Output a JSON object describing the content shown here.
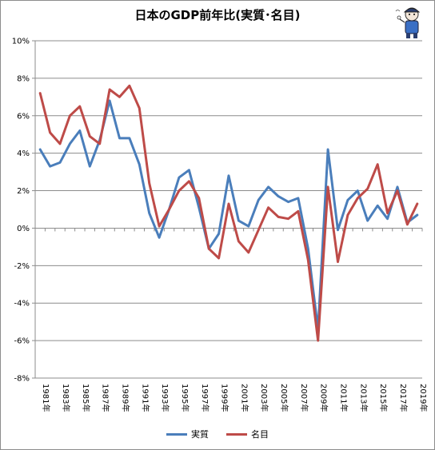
{
  "chart_data": {
    "type": "line",
    "title": "日本のGDP前年比(実質･名目)",
    "x": [
      "1981年",
      "1982年",
      "1983年",
      "1984年",
      "1985年",
      "1986年",
      "1987年",
      "1988年",
      "1989年",
      "1990年",
      "1991年",
      "1992年",
      "1993年",
      "1994年",
      "1995年",
      "1996年",
      "1997年",
      "1998年",
      "1999年",
      "2000年",
      "2001年",
      "2002年",
      "2003年",
      "2004年",
      "2005年",
      "2006年",
      "2007年",
      "2008年",
      "2009年",
      "2010年",
      "2011年",
      "2012年",
      "2013年",
      "2014年",
      "2015年",
      "2016年",
      "2017年",
      "2018年",
      "2019年"
    ],
    "xtick_labels": [
      "1981年",
      "1983年",
      "1985年",
      "1987年",
      "1989年",
      "1991年",
      "1993年",
      "1995年",
      "1997年",
      "1999年",
      "2001年",
      "2003年",
      "2005年",
      "2007年",
      "2009年",
      "2011年",
      "2013年",
      "2015年",
      "2017年",
      "2019年"
    ],
    "yticks": [
      "10%",
      "8%",
      "6%",
      "4%",
      "2%",
      "0%",
      "-2%",
      "-4%",
      "-6%",
      "-8%"
    ],
    "ylim": [
      -8,
      10
    ],
    "grid": "horizontal",
    "legend_position": "bottom",
    "series": [
      {
        "name": "実質",
        "color": "#4a7ebb",
        "values": [
          4.2,
          3.3,
          3.5,
          4.5,
          5.2,
          3.3,
          4.7,
          6.8,
          4.8,
          4.8,
          3.4,
          0.8,
          -0.5,
          1.0,
          2.7,
          3.1,
          1.1,
          -1.1,
          -0.3,
          2.8,
          0.4,
          0.1,
          1.5,
          2.2,
          1.7,
          1.4,
          1.6,
          -1.1,
          -5.4,
          4.2,
          -0.1,
          1.5,
          2.0,
          0.4,
          1.2,
          0.5,
          2.2,
          0.3,
          0.7
        ]
      },
      {
        "name": "名目",
        "color": "#be4b48",
        "values": [
          7.2,
          5.1,
          4.5,
          6.0,
          6.5,
          4.9,
          4.5,
          7.4,
          7.0,
          7.6,
          6.4,
          2.4,
          0.1,
          1.0,
          2.0,
          2.5,
          1.6,
          -1.1,
          -1.6,
          1.3,
          -0.7,
          -1.3,
          -0.1,
          1.1,
          0.6,
          0.5,
          0.9,
          -1.7,
          -6.0,
          2.2,
          -1.8,
          0.7,
          1.6,
          2.1,
          3.4,
          0.8,
          2.0,
          0.2,
          1.3
        ]
      }
    ]
  }
}
